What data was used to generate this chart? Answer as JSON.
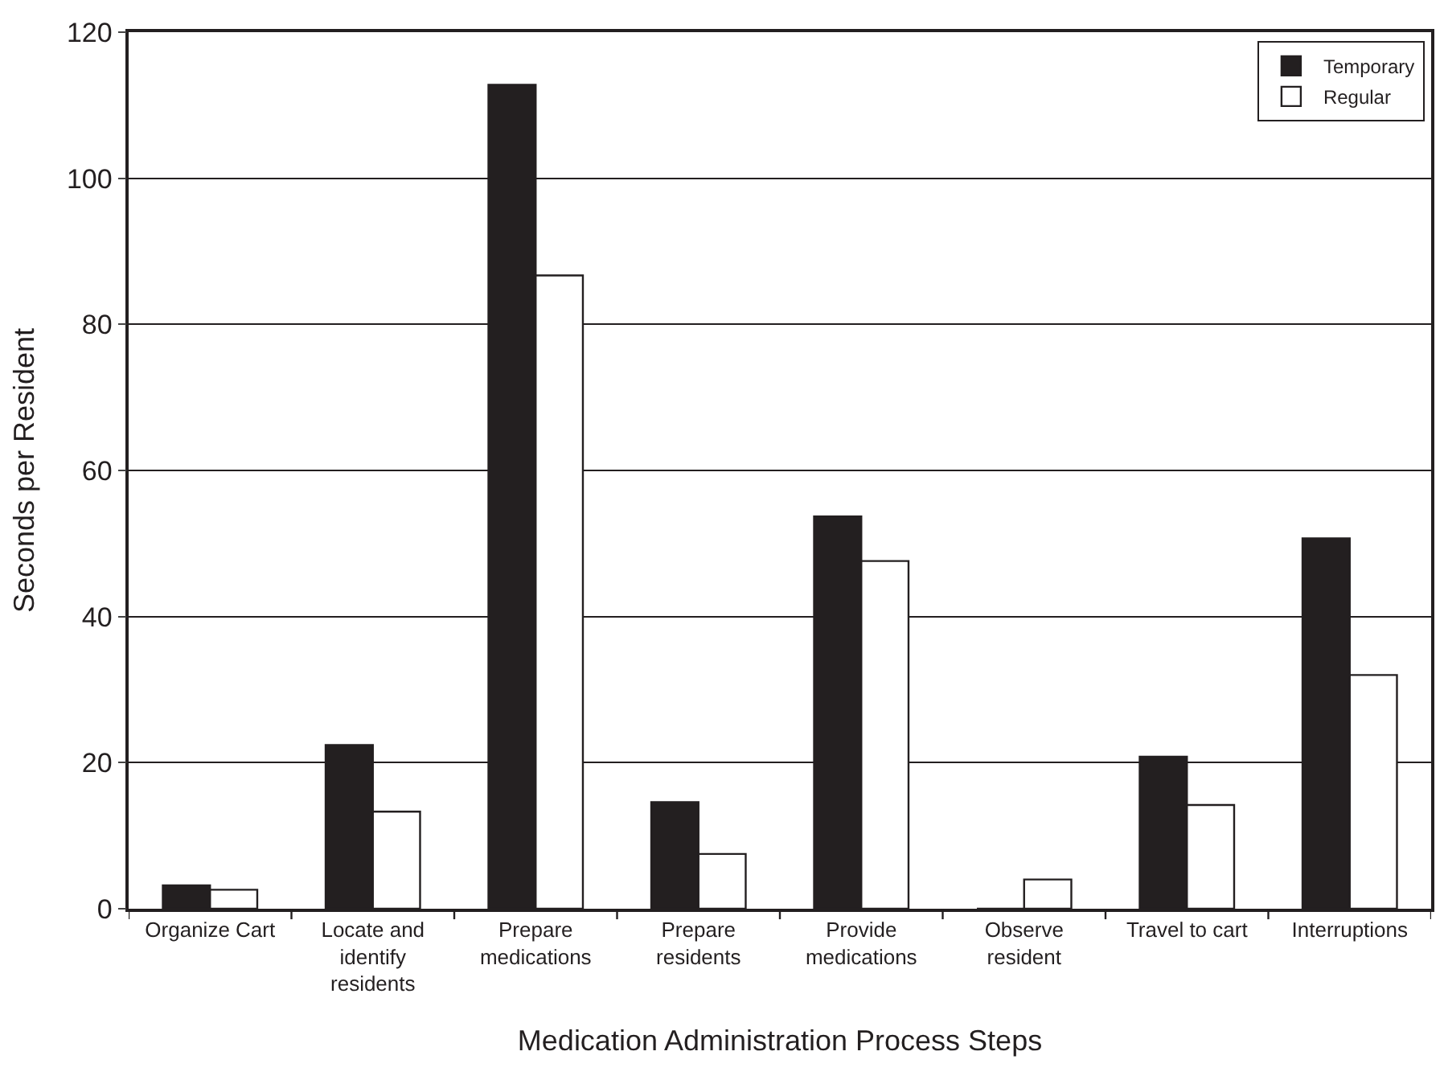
{
  "chart_data": {
    "type": "bar",
    "xlabel": "Medication Administration Process Steps",
    "ylabel": "Seconds per Resident",
    "categories": [
      "Organize Cart",
      "Locate and\nidentify\nresidents",
      "Prepare\nmedications",
      "Prepare\nresidents",
      "Provide\nmedications",
      "Observe\nresident",
      "Travel to cart",
      "Interruptions"
    ],
    "series": [
      {
        "name": "Temporary",
        "color": "#231f20",
        "values": [
          3.2,
          22.4,
          112.8,
          14.6,
          53.7,
          0,
          20.8,
          50.7
        ]
      },
      {
        "name": "Regular",
        "color": "#ffffff",
        "values": [
          2.6,
          13.3,
          86.7,
          7.5,
          47.6,
          4.0,
          14.2,
          32.0
        ]
      }
    ],
    "ylim": [
      0,
      120
    ],
    "yticks": [
      0,
      20,
      40,
      60,
      80,
      100,
      120
    ],
    "grid": "y",
    "legend": "top right"
  }
}
